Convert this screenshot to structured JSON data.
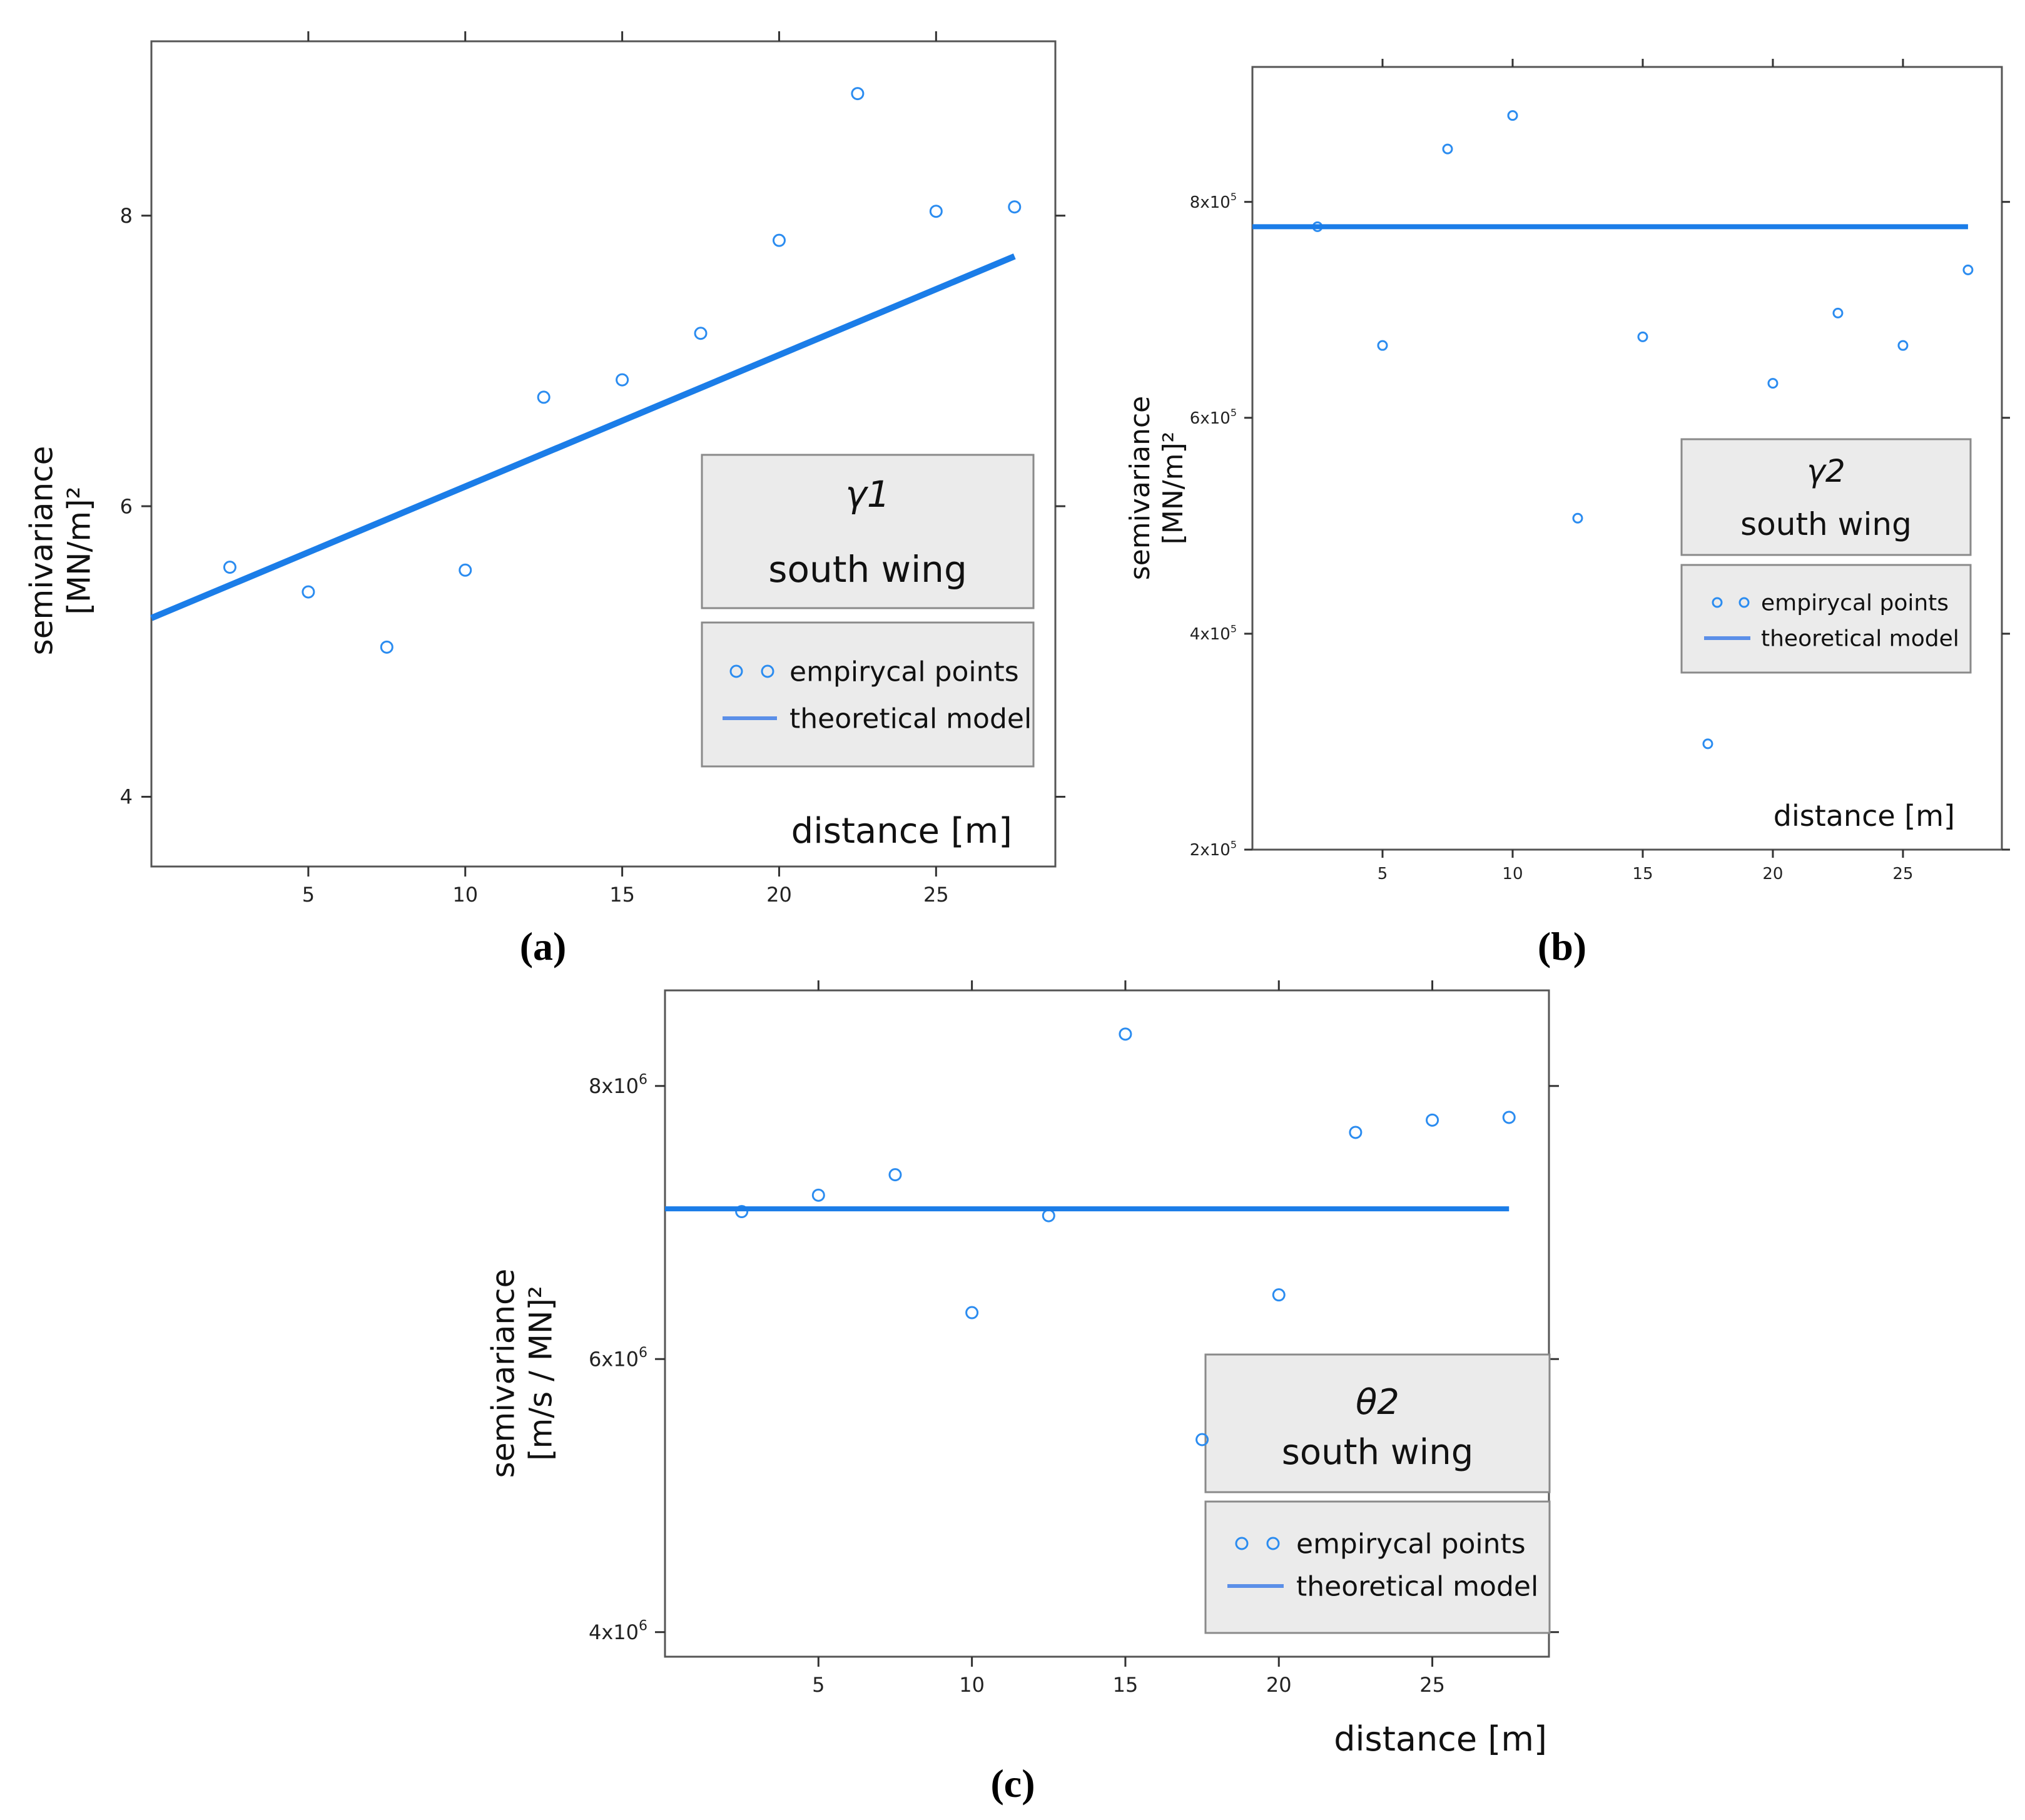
{
  "figure": {
    "panel_labels": [
      "(a)",
      "(b)",
      "(c)"
    ]
  },
  "colors": {
    "points": "#2b8cf0",
    "model_line": "#1b7de8",
    "legend_line": "#5b8fe8",
    "legend_fill": "#ebebeb",
    "axis": "#555555"
  },
  "chart_data": [
    {
      "type": "scatter",
      "panel": "(a)",
      "title": "γ1",
      "subtitle": "south wing",
      "xlabel": "distance [m]",
      "ylabel": "semivariance",
      "ylabel_unit": "[MN/m]²",
      "xlim": [
        0,
        28.8
      ],
      "ylim": [
        3.52,
        9.2
      ],
      "x_ticks": [
        5,
        10,
        15,
        20,
        25
      ],
      "x_tick_labels": [
        "5",
        "10",
        "15",
        "20",
        "25"
      ],
      "y_ticks": [
        4,
        6,
        8
      ],
      "y_tick_labels": [
        "4",
        "6",
        "8"
      ],
      "legend": [
        "empirycal points",
        "theoretical model"
      ],
      "legend_position": "bottom-right",
      "grid": false,
      "series": [
        {
          "name": "empirycal points",
          "type": "scatter",
          "x": [
            2.5,
            5,
            7.5,
            10,
            12.5,
            15,
            17.5,
            20,
            22.5,
            25,
            27.5
          ],
          "y": [
            5.58,
            5.41,
            5.03,
            5.56,
            6.75,
            6.87,
            7.19,
            7.83,
            8.84,
            8.03,
            8.06
          ]
        },
        {
          "name": "theoretical model",
          "type": "line",
          "x": [
            0,
            27.5
          ],
          "y": [
            5.23,
            7.72
          ]
        }
      ]
    },
    {
      "type": "scatter",
      "panel": "(b)",
      "title": "γ2",
      "subtitle": "south wing",
      "xlabel": "distance [m]",
      "ylabel": "semivariance",
      "ylabel_unit": "[MN/m]²",
      "xlim": [
        0,
        28.8
      ],
      "ylim": [
        200000,
        925000
      ],
      "x_ticks": [
        5,
        10,
        15,
        20,
        25
      ],
      "x_tick_labels": [
        "5",
        "10",
        "15",
        "20",
        "25"
      ],
      "y_ticks": [
        200000,
        400000,
        600000,
        800000
      ],
      "y_tick_labels": [
        {
          "base": "2x10",
          "exp": "5"
        },
        {
          "base": "4x10",
          "exp": "5"
        },
        {
          "base": "6x10",
          "exp": "5"
        },
        {
          "base": "8x10",
          "exp": "5"
        }
      ],
      "legend": [
        "empirycal points",
        "theoretical model"
      ],
      "legend_position": "right",
      "grid": false,
      "series": [
        {
          "name": "empirycal points",
          "type": "scatter",
          "x": [
            2.5,
            5,
            7.5,
            10,
            12.5,
            15,
            17.5,
            20,
            22.5,
            25,
            27.5
          ],
          "y": [
            777000,
            667000,
            849000,
            880000,
            507000,
            675000,
            298000,
            632000,
            697000,
            667000,
            737000
          ]
        },
        {
          "name": "theoretical model",
          "type": "line",
          "x": [
            0,
            27.5
          ],
          "y": [
            777000,
            777000
          ]
        }
      ]
    },
    {
      "type": "scatter",
      "panel": "(c)",
      "title": "θ2",
      "subtitle": "south wing",
      "xlabel": "distance [m]",
      "ylabel": "semivariance",
      "ylabel_unit": "[m/s / MN]²",
      "xlim": [
        0,
        28.8
      ],
      "ylim": [
        3820000,
        8700000
      ],
      "x_ticks": [
        5,
        10,
        15,
        20,
        25
      ],
      "x_tick_labels": [
        "5",
        "10",
        "15",
        "20",
        "25"
      ],
      "y_ticks": [
        4000000,
        6000000,
        8000000
      ],
      "y_tick_labels": [
        {
          "base": "4x10",
          "exp": "6"
        },
        {
          "base": "6x10",
          "exp": "6"
        },
        {
          "base": "8x10",
          "exp": "6"
        }
      ],
      "legend": [
        "empirycal points",
        "theoretical model"
      ],
      "legend_position": "bottom-right",
      "grid": false,
      "series": [
        {
          "name": "empirycal points",
          "type": "scatter",
          "x": [
            2.5,
            5,
            7.5,
            10,
            12.5,
            15,
            17.5,
            20,
            22.5,
            25,
            27.5
          ],
          "y": [
            7080000,
            7200000,
            7350000,
            6340000,
            7050000,
            8380000,
            5410000,
            6470000,
            7660000,
            7750000,
            7770000
          ]
        },
        {
          "name": "theoretical model",
          "type": "line",
          "x": [
            0,
            27.5
          ],
          "y": [
            7100000,
            7100000
          ]
        }
      ]
    }
  ]
}
